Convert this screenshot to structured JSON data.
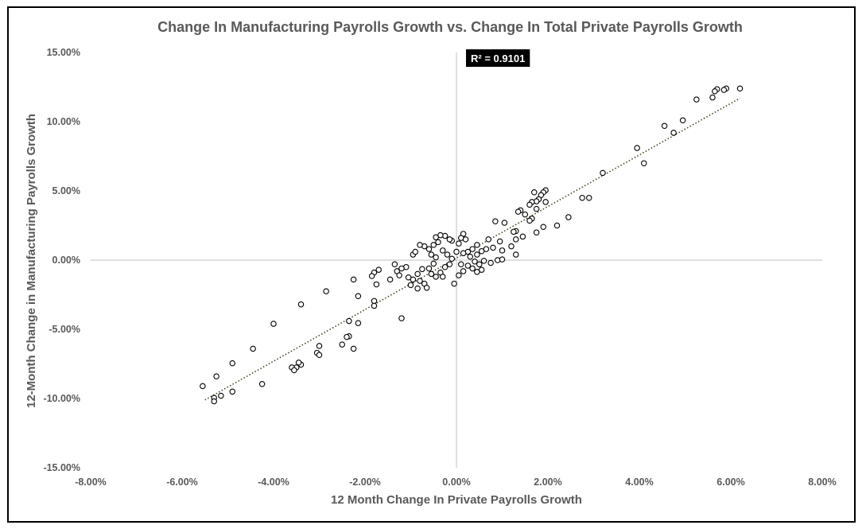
{
  "chart_data": {
    "type": "scatter",
    "title": "Change In Manufacturing Payrolls Growth vs. Change In Total Private Payrolls Growth",
    "xlabel": "12 Month Change In Private Payrolls Growth",
    "ylabel": "12-Month Change in Manufacturing Payrolls Growth",
    "xlim": [
      -8,
      8
    ],
    "ylim": [
      -15,
      15
    ],
    "x_ticks": [
      "-8.00%",
      "-6.00%",
      "-4.00%",
      "-2.00%",
      "0.00%",
      "2.00%",
      "4.00%",
      "6.00%",
      "8.00%"
    ],
    "y_ticks": [
      "15.00%",
      "10.00%",
      "5.00%",
      "0.00%",
      "-5.00%",
      "-10.00%",
      "-15.00%"
    ],
    "annotation": "R² = 0.9101",
    "trendline": {
      "style": "dotted",
      "color": "#3b4a1c",
      "x_range": [
        -5.5,
        6.2
      ],
      "y_range": [
        -10.1,
        11.7
      ]
    },
    "marker": {
      "shape": "open-circle",
      "stroke": "#000000",
      "fill": "#ffffff"
    },
    "axis_line_color": "#bfbfbf",
    "points": [
      [
        6.2,
        12.4
      ],
      [
        5.9,
        12.4
      ],
      [
        5.85,
        12.3
      ],
      [
        5.7,
        12.35
      ],
      [
        5.65,
        12.2
      ],
      [
        5.6,
        11.75
      ],
      [
        5.25,
        11.6
      ],
      [
        4.95,
        10.1
      ],
      [
        4.75,
        9.2
      ],
      [
        4.55,
        9.7
      ],
      [
        4.1,
        7.0
      ],
      [
        3.95,
        8.1
      ],
      [
        3.2,
        6.3
      ],
      [
        2.9,
        4.5
      ],
      [
        2.75,
        4.5
      ],
      [
        2.45,
        3.1
      ],
      [
        2.2,
        2.5
      ],
      [
        1.95,
        5.05
      ],
      [
        1.9,
        4.9
      ],
      [
        1.95,
        4.2
      ],
      [
        1.85,
        4.7
      ],
      [
        1.8,
        4.4
      ],
      [
        1.75,
        4.25
      ],
      [
        1.7,
        4.9
      ],
      [
        1.65,
        4.2
      ],
      [
        1.6,
        4.0
      ],
      [
        1.75,
        3.7
      ],
      [
        1.65,
        3.0
      ],
      [
        1.6,
        2.85
      ],
      [
        1.5,
        3.3
      ],
      [
        1.4,
        3.6
      ],
      [
        1.35,
        3.5
      ],
      [
        1.9,
        2.4
      ],
      [
        1.75,
        2.0
      ],
      [
        1.45,
        1.7
      ],
      [
        1.3,
        2.1
      ],
      [
        1.25,
        2.05
      ],
      [
        1.3,
        1.5
      ],
      [
        1.2,
        1.0
      ],
      [
        1.3,
        0.4
      ],
      [
        1.05,
        2.7
      ],
      [
        0.85,
        2.8
      ],
      [
        0.7,
        1.5
      ],
      [
        0.95,
        1.35
      ],
      [
        0.8,
        0.9
      ],
      [
        0.65,
        0.8
      ],
      [
        1.0,
        0.7
      ],
      [
        0.55,
        0.65
      ],
      [
        0.45,
        0.4
      ],
      [
        0.45,
        1.1
      ],
      [
        0.35,
        0.8
      ],
      [
        0.25,
        0.6
      ],
      [
        0.15,
        0.5
      ],
      [
        0.2,
        1.5
      ],
      [
        0.15,
        1.9
      ],
      [
        0.1,
        1.6
      ],
      [
        0.05,
        1.2
      ],
      [
        0.3,
        0.25
      ],
      [
        0.4,
        -0.1
      ],
      [
        0.5,
        -0.3
      ],
      [
        0.55,
        -0.7
      ],
      [
        0.45,
        -0.85
      ],
      [
        0.35,
        -0.6
      ],
      [
        0.6,
        -0.05
      ],
      [
        0.75,
        -0.2
      ],
      [
        0.9,
        0.0
      ],
      [
        1.0,
        0.05
      ],
      [
        0.25,
        -0.4
      ],
      [
        0.15,
        -0.8
      ],
      [
        0.05,
        -1.1
      ],
      [
        -0.05,
        -1.7
      ],
      [
        0.1,
        -0.3
      ],
      [
        0.0,
        0.6
      ],
      [
        -0.1,
        1.4
      ],
      [
        -0.15,
        1.5
      ],
      [
        -0.25,
        1.75
      ],
      [
        -0.35,
        1.8
      ],
      [
        -0.45,
        1.65
      ],
      [
        -0.4,
        1.3
      ],
      [
        -0.5,
        1.1
      ],
      [
        -0.3,
        0.7
      ],
      [
        -0.2,
        0.4
      ],
      [
        -0.1,
        0.1
      ],
      [
        -0.15,
        -0.3
      ],
      [
        -0.25,
        -0.5
      ],
      [
        -0.35,
        -0.9
      ],
      [
        -0.3,
        -1.2
      ],
      [
        -0.45,
        -1.2
      ],
      [
        -0.55,
        -1.0
      ],
      [
        -0.6,
        -0.6
      ],
      [
        -0.5,
        -0.25
      ],
      [
        -0.45,
        0.2
      ],
      [
        -0.55,
        0.4
      ],
      [
        -0.6,
        0.8
      ],
      [
        -0.7,
        1.0
      ],
      [
        -0.8,
        1.1
      ],
      [
        -0.95,
        0.4
      ],
      [
        -0.9,
        0.6
      ],
      [
        -0.75,
        -0.65
      ],
      [
        -0.85,
        -1.0
      ],
      [
        -0.8,
        -1.5
      ],
      [
        -0.95,
        -1.4
      ],
      [
        -1.0,
        -1.8
      ],
      [
        -1.05,
        -1.25
      ],
      [
        -1.1,
        -0.5
      ],
      [
        -1.2,
        -0.6
      ],
      [
        -1.35,
        -0.3
      ],
      [
        -1.3,
        -0.8
      ],
      [
        -1.25,
        -1.1
      ],
      [
        -1.45,
        -1.4
      ],
      [
        -0.7,
        -1.7
      ],
      [
        -0.65,
        -2.0
      ],
      [
        -0.85,
        -2.05
      ],
      [
        -1.7,
        -0.7
      ],
      [
        -1.8,
        -0.9
      ],
      [
        -1.85,
        -1.15
      ],
      [
        -1.75,
        -1.75
      ],
      [
        -1.8,
        -2.95
      ],
      [
        -1.8,
        -3.3
      ],
      [
        -2.25,
        -1.4
      ],
      [
        -2.15,
        -2.6
      ],
      [
        -2.35,
        -4.4
      ],
      [
        -2.15,
        -4.55
      ],
      [
        -2.35,
        -5.5
      ],
      [
        -2.4,
        -5.55
      ],
      [
        -2.5,
        -6.1
      ],
      [
        -2.25,
        -6.4
      ],
      [
        -1.2,
        -4.2
      ],
      [
        -2.85,
        -2.25
      ],
      [
        -3.4,
        -3.2
      ],
      [
        -3.0,
        -6.2
      ],
      [
        -3.05,
        -6.7
      ],
      [
        -3.0,
        -6.85
      ],
      [
        -3.4,
        -7.55
      ],
      [
        -3.45,
        -7.4
      ],
      [
        -3.5,
        -7.75
      ],
      [
        -3.6,
        -7.75
      ],
      [
        -3.55,
        -7.95
      ],
      [
        -4.0,
        -4.6
      ],
      [
        -4.45,
        -6.4
      ],
      [
        -4.25,
        -8.95
      ],
      [
        -4.9,
        -7.45
      ],
      [
        -4.9,
        -9.5
      ],
      [
        -5.15,
        -9.8
      ],
      [
        -5.3,
        -9.95
      ],
      [
        -5.3,
        -10.2
      ],
      [
        -5.55,
        -9.1
      ],
      [
        -5.25,
        -8.4
      ]
    ]
  }
}
